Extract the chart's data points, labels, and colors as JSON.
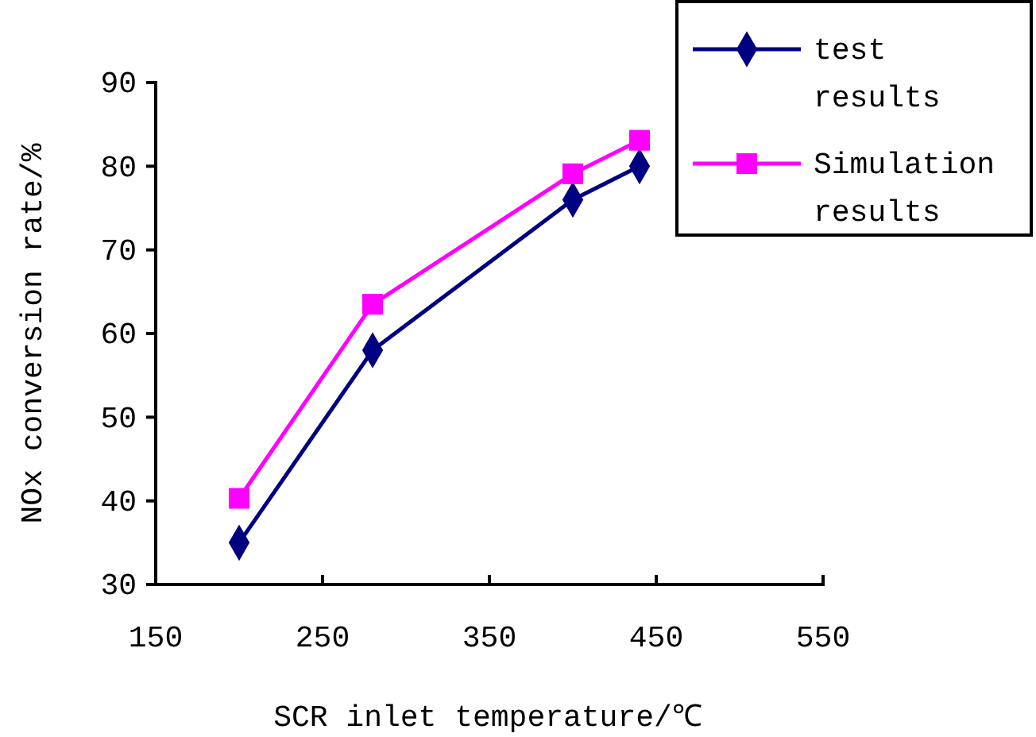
{
  "chart_data": {
    "type": "line",
    "xlabel": "SCR inlet temperature/℃",
    "ylabel": "NOx conversion rate/%",
    "xlim": [
      150,
      550
    ],
    "xticks": [
      150,
      250,
      350,
      450,
      550
    ],
    "ylim": [
      30,
      90
    ],
    "yticks": [
      30,
      40,
      50,
      60,
      70,
      80,
      90
    ],
    "x": [
      200,
      280,
      400,
      440
    ],
    "series": [
      {
        "name": "test results",
        "color": "#000080",
        "values": [
          35,
          58,
          76,
          80
        ],
        "marker": "diamond"
      },
      {
        "name": "Simulation results",
        "color": "#ff00ff",
        "values": [
          40.3,
          63.5,
          79.1,
          83.1
        ],
        "marker": "square"
      }
    ],
    "legend": "top right",
    "grid": false,
    "line_style": "solid"
  }
}
